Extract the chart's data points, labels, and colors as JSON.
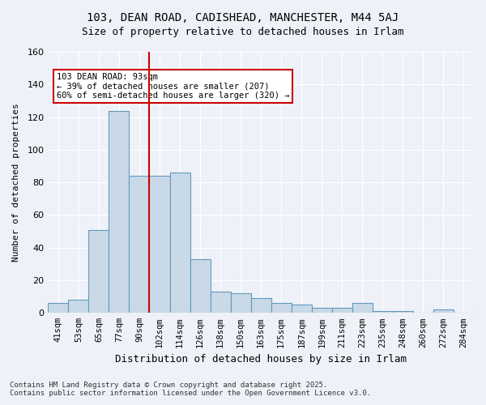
{
  "title_line1": "103, DEAN ROAD, CADISHEAD, MANCHESTER, M44 5AJ",
  "title_line2": "Size of property relative to detached houses in Irlam",
  "xlabel": "Distribution of detached houses by size in Irlam",
  "ylabel": "Number of detached properties",
  "categories": [
    "41sqm",
    "53sqm",
    "65sqm",
    "77sqm",
    "90sqm",
    "102sqm",
    "114sqm",
    "126sqm",
    "138sqm",
    "150sqm",
    "163sqm",
    "175sqm",
    "187sqm",
    "199sqm",
    "211sqm",
    "223sqm",
    "235sqm",
    "248sqm",
    "260sqm",
    "272sqm",
    "284sqm"
  ],
  "values": [
    6,
    8,
    51,
    124,
    84,
    84,
    86,
    33,
    13,
    12,
    9,
    6,
    5,
    3,
    3,
    6,
    1,
    1,
    0,
    2,
    0
  ],
  "bar_color": "#c9d9e8",
  "bar_edge_color": "#6699bb",
  "vline_x": 4.5,
  "vline_color": "#cc0000",
  "annotation_title": "103 DEAN ROAD: 93sqm",
  "annotation_line2": "← 39% of detached houses are smaller (207)",
  "annotation_line3": "60% of semi-detached houses are larger (320) →",
  "annotation_box_color": "#cc0000",
  "ylim": [
    0,
    160
  ],
  "yticks": [
    0,
    20,
    40,
    60,
    80,
    100,
    120,
    140,
    160
  ],
  "footer_line1": "Contains HM Land Registry data © Crown copyright and database right 2025.",
  "footer_line2": "Contains public sector information licensed under the Open Government Licence v3.0.",
  "bg_color": "#eef2f8",
  "grid_color": "#ffffff"
}
